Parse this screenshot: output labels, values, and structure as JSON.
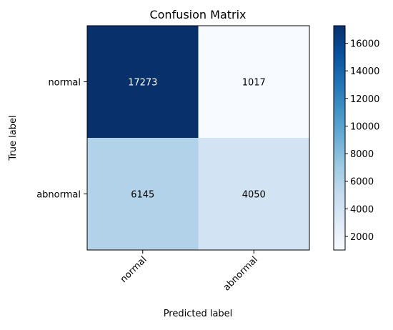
{
  "chart_data": {
    "type": "heatmap",
    "title": "Confusion Matrix",
    "xlabel": "Predicted label",
    "ylabel": "True label",
    "x_categories": [
      "normal",
      "abnormal"
    ],
    "y_categories": [
      "normal",
      "abnormal"
    ],
    "values": [
      [
        17273,
        1017
      ],
      [
        6145,
        4050
      ]
    ],
    "value_labels": [
      [
        "17273",
        "1017"
      ],
      [
        "6145",
        "4050"
      ]
    ],
    "colormap": "Blues",
    "colorbar": {
      "range": [
        1017,
        17273
      ],
      "ticks": [
        2000,
        4000,
        6000,
        8000,
        10000,
        12000,
        14000,
        16000
      ],
      "tick_labels": [
        "2000",
        "4000",
        "6000",
        "8000",
        "10000",
        "12000",
        "14000",
        "16000"
      ]
    },
    "grid": false
  }
}
